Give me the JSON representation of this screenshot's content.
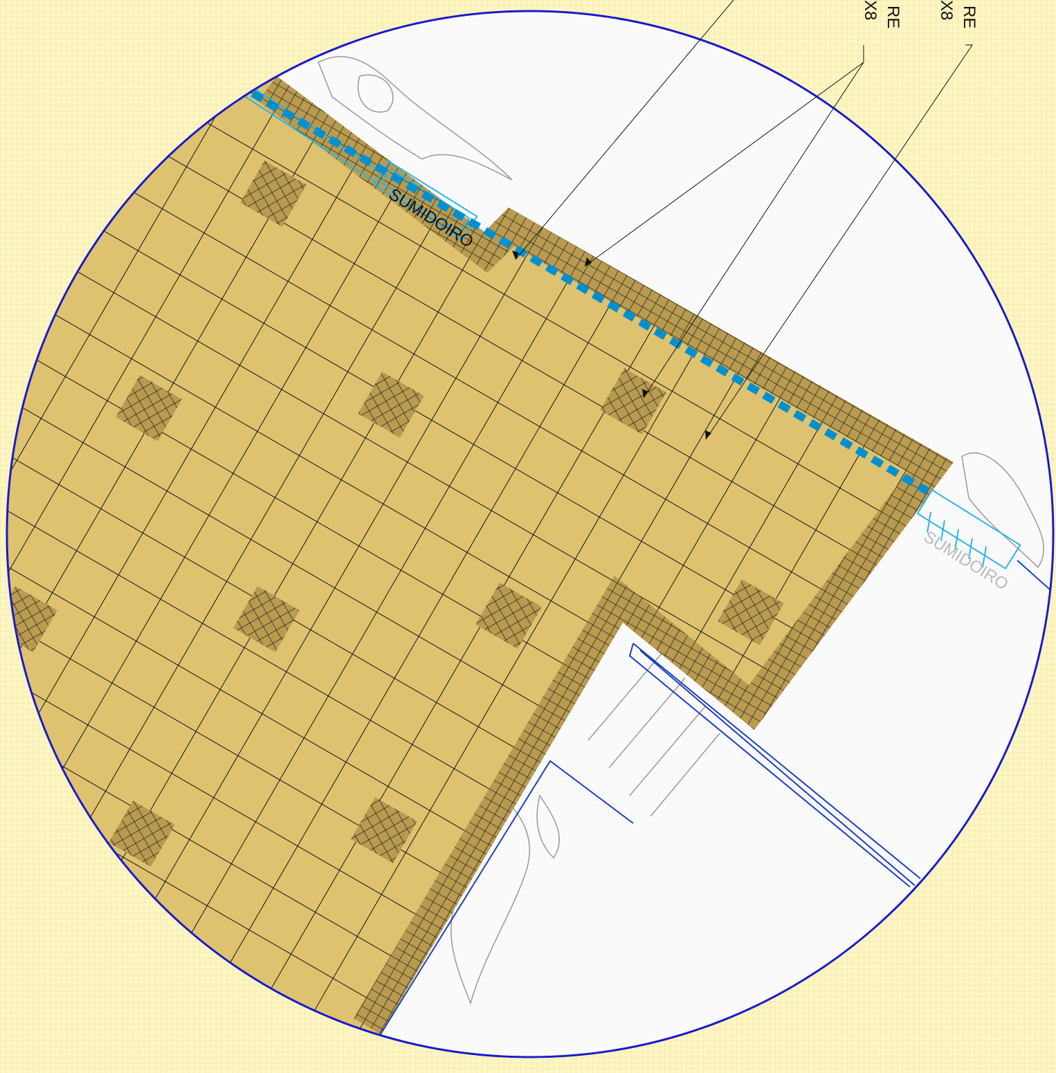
{
  "annotations": [
    {
      "text": "RE"
    },
    {
      "text": "X8"
    },
    {
      "text": "RE"
    },
    {
      "text": "X8"
    }
  ],
  "drain_labels": [
    "SUMIDOIRO",
    "SUMIDOIRO"
  ]
}
